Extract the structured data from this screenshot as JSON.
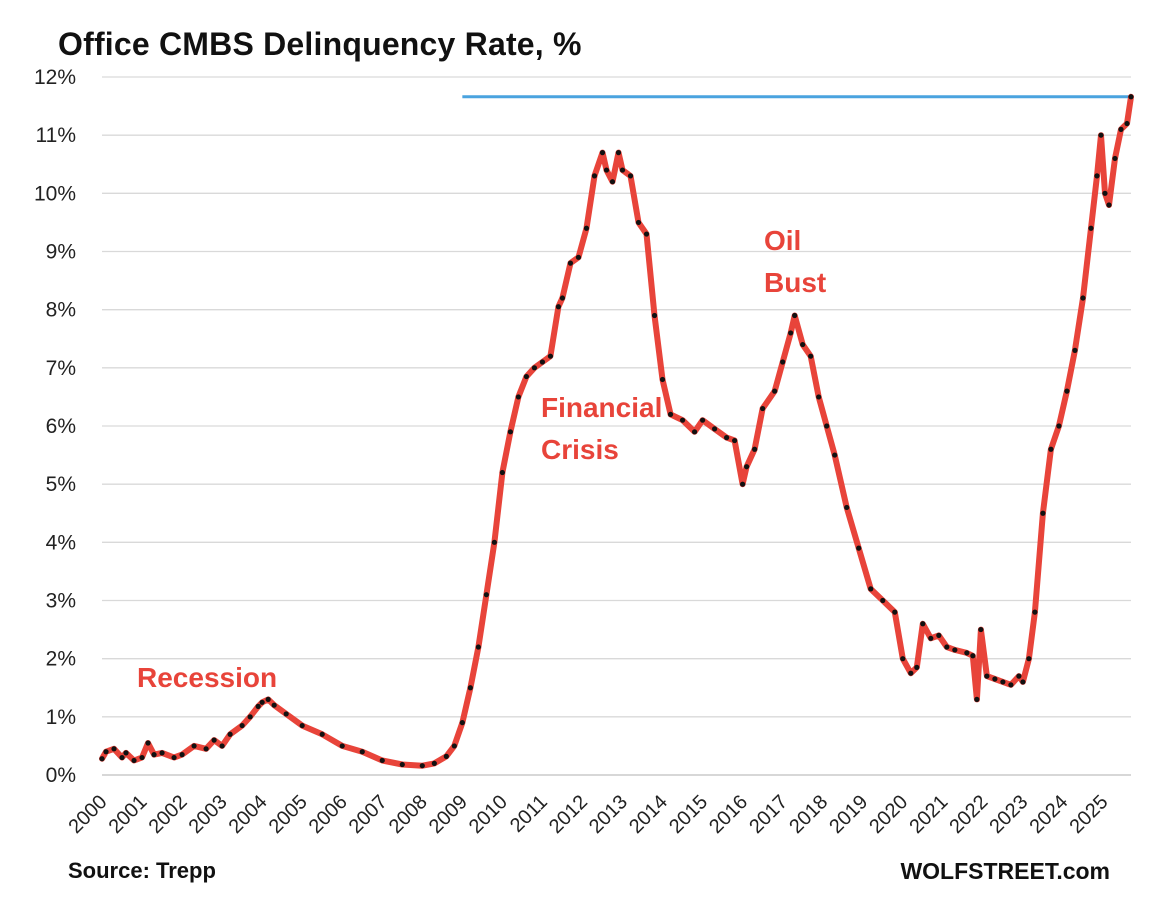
{
  "title": "Office CMBS Delinquency Rate, %",
  "source": "Source: Trepp",
  "brand": "WOLFSTREET.com",
  "annotations": {
    "recession": "Recession",
    "financial_crisis_line1": "Financial",
    "financial_crisis_line2": "Crisis",
    "oil_bust_line1": "Oil",
    "oil_bust_line2": "Bust"
  },
  "colors": {
    "line": "#e8443a",
    "markers": "#111111",
    "reference_line": "#4aa3df",
    "grid": "#d9d9d9",
    "annotation": "#e8443a"
  },
  "chart_data": {
    "type": "line",
    "title": "Office CMBS Delinquency Rate, %",
    "xlabel": "",
    "ylabel": "",
    "xlim": [
      2000,
      2025.7
    ],
    "ylim": [
      0,
      12
    ],
    "grid": true,
    "y_ticks": [
      "0%",
      "1%",
      "2%",
      "3%",
      "4%",
      "5%",
      "6%",
      "7%",
      "8%",
      "9%",
      "10%",
      "11%",
      "12%"
    ],
    "x_ticks": [
      "2000",
      "2001",
      "2002",
      "2003",
      "2004",
      "2005",
      "2006",
      "2007",
      "2008",
      "2009",
      "2010",
      "2011",
      "2012",
      "2013",
      "2014",
      "2015",
      "2016",
      "2017",
      "2018",
      "2019",
      "2020",
      "2021",
      "2022",
      "2023",
      "2024",
      "2025"
    ],
    "reference_line": {
      "y": 11.66,
      "x_start": 2009.0,
      "x_end": 2025.7
    },
    "series": [
      {
        "x": [
          2000.0,
          2000.1,
          2000.3,
          2000.5,
          2000.6,
          2000.8,
          2001.0,
          2001.15,
          2001.3,
          2001.5,
          2001.8,
          2002.0,
          2002.3,
          2002.6,
          2002.8,
          2003.0,
          2003.2,
          2003.5,
          2003.7,
          2003.9,
          2004.0,
          2004.15,
          2004.3,
          2004.6,
          2005.0,
          2005.5,
          2006.0,
          2006.5,
          2007.0,
          2007.5,
          2008.0,
          2008.3,
          2008.6,
          2008.8,
          2009.0,
          2009.2,
          2009.4,
          2009.6,
          2009.8,
          2010.0,
          2010.2,
          2010.4,
          2010.6,
          2010.8,
          2011.0,
          2011.2,
          2011.4,
          2011.5,
          2011.7,
          2011.9,
          2012.1,
          2012.3,
          2012.5,
          2012.6,
          2012.75,
          2012.9,
          2013.0,
          2013.2,
          2013.4,
          2013.6,
          2013.8,
          2014.0,
          2014.2,
          2014.5,
          2014.8,
          2015.0,
          2015.3,
          2015.6,
          2015.8,
          2016.0,
          2016.1,
          2016.3,
          2016.5,
          2016.8,
          2017.0,
          2017.2,
          2017.3,
          2017.5,
          2017.7,
          2017.9,
          2018.1,
          2018.3,
          2018.6,
          2018.9,
          2019.2,
          2019.5,
          2019.8,
          2020.0,
          2020.2,
          2020.35,
          2020.5,
          2020.7,
          2020.9,
          2021.1,
          2021.3,
          2021.6,
          2021.75,
          2021.85,
          2021.95,
          2022.1,
          2022.3,
          2022.5,
          2022.7,
          2022.9,
          2023.0,
          2023.15,
          2023.3,
          2023.5,
          2023.7,
          2023.9,
          2024.1,
          2024.3,
          2024.5,
          2024.7,
          2024.85,
          2024.95,
          2025.05,
          2025.15,
          2025.3,
          2025.45,
          2025.6,
          2025.7
        ],
        "y": [
          0.28,
          0.4,
          0.45,
          0.3,
          0.38,
          0.25,
          0.3,
          0.55,
          0.35,
          0.38,
          0.3,
          0.35,
          0.5,
          0.45,
          0.6,
          0.5,
          0.7,
          0.85,
          1.0,
          1.18,
          1.25,
          1.3,
          1.2,
          1.05,
          0.85,
          0.7,
          0.5,
          0.4,
          0.25,
          0.18,
          0.16,
          0.2,
          0.32,
          0.5,
          0.9,
          1.5,
          2.2,
          3.1,
          4.0,
          5.2,
          5.9,
          6.5,
          6.85,
          7.0,
          7.1,
          7.2,
          8.05,
          8.2,
          8.8,
          8.9,
          9.4,
          10.3,
          10.7,
          10.4,
          10.2,
          10.7,
          10.4,
          10.3,
          9.5,
          9.3,
          7.9,
          6.8,
          6.2,
          6.1,
          5.9,
          6.1,
          5.95,
          5.8,
          5.75,
          5.0,
          5.3,
          5.6,
          6.3,
          6.6,
          7.1,
          7.6,
          7.9,
          7.4,
          7.2,
          6.5,
          6.0,
          5.5,
          4.6,
          3.9,
          3.2,
          3.0,
          2.8,
          2.0,
          1.75,
          1.85,
          2.6,
          2.35,
          2.4,
          2.2,
          2.15,
          2.1,
          2.05,
          1.3,
          2.5,
          1.7,
          1.65,
          1.6,
          1.55,
          1.7,
          1.6,
          2.0,
          2.8,
          4.5,
          5.6,
          6.0,
          6.6,
          7.3,
          8.2,
          9.4,
          10.3,
          11.0,
          10.0,
          9.8,
          10.6,
          11.1,
          11.2,
          11.66
        ]
      }
    ]
  }
}
